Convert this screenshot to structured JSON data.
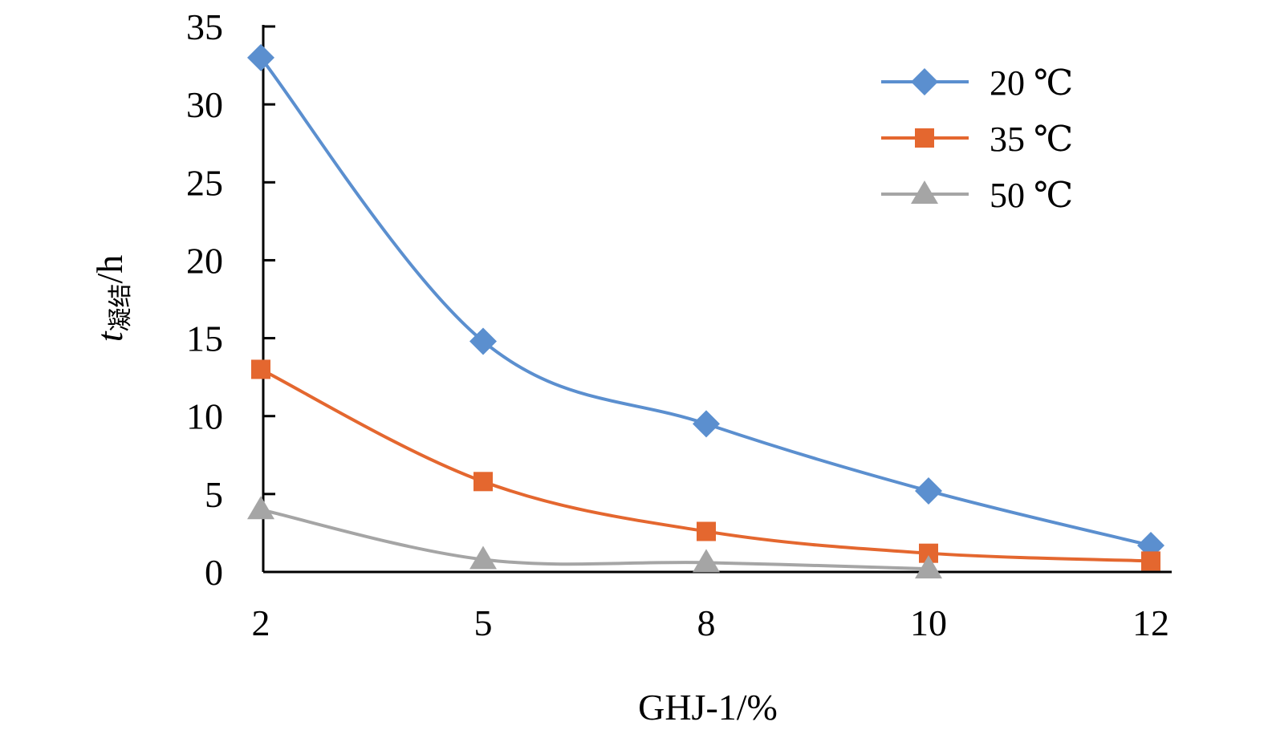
{
  "chart_data": {
    "type": "line",
    "x": [
      "2",
      "5",
      "8",
      "10",
      "12"
    ],
    "series": [
      {
        "name": "20 ℃",
        "color": "#5B8FCF",
        "marker": "diamond",
        "values": [
          33.0,
          14.8,
          9.5,
          5.2,
          1.7
        ]
      },
      {
        "name": "35 ℃",
        "color": "#E4672F",
        "marker": "square",
        "values": [
          13.0,
          5.8,
          2.6,
          1.2,
          0.7
        ]
      },
      {
        "name": "50 ℃",
        "color": "#A5A5A5",
        "marker": "triangle",
        "values": [
          4.0,
          0.8,
          0.6,
          0.2,
          null
        ]
      }
    ],
    "xlabel": "GHJ-1/%",
    "ylabel_main": "t",
    "ylabel_sub": "凝结",
    "ylabel_unit": "/h",
    "ylim": [
      0,
      35
    ],
    "yticks": [
      0,
      5,
      10,
      15,
      20,
      25,
      30,
      35
    ],
    "legend_position": "top-right",
    "grid": false,
    "smoothed": true
  }
}
